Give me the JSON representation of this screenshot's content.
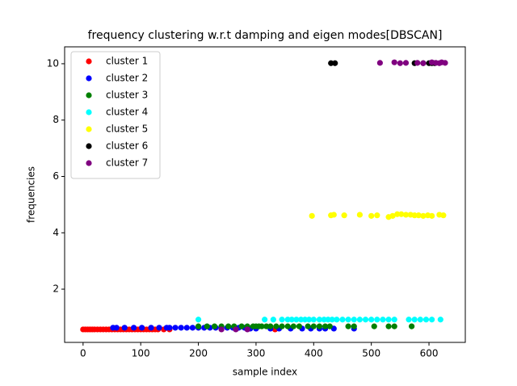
{
  "chart_data": {
    "type": "scatter",
    "title": "frequency clustering w.r.t damping and eigen modes[DBSCAN]",
    "xlabel": "sample index",
    "ylabel": "frequencies",
    "xlim": [
      -32,
      663
    ],
    "ylim": [
      0.11,
      10.6
    ],
    "xticks": [
      0,
      100,
      200,
      300,
      400,
      500,
      600
    ],
    "yticks": [
      2,
      4,
      6,
      8,
      10
    ],
    "legend": "upper left",
    "series": [
      {
        "name": "cluster 1",
        "color": "#ff0000",
        "x": [
          0,
          4,
          8,
          12,
          16,
          20,
          25,
          30,
          35,
          40,
          45,
          50,
          55,
          60,
          65,
          70,
          75,
          80,
          85,
          90,
          95,
          100,
          105,
          110,
          115,
          120,
          125,
          130,
          140,
          150,
          333
        ],
        "y": [
          0.57,
          0.57,
          0.57,
          0.57,
          0.57,
          0.57,
          0.57,
          0.57,
          0.57,
          0.57,
          0.57,
          0.57,
          0.57,
          0.57,
          0.57,
          0.57,
          0.57,
          0.57,
          0.57,
          0.57,
          0.57,
          0.57,
          0.57,
          0.57,
          0.57,
          0.57,
          0.57,
          0.57,
          0.57,
          0.57,
          0.57
        ]
      },
      {
        "name": "cluster 2",
        "color": "#0000ff",
        "x": [
          52,
          58,
          72,
          88,
          102,
          118,
          132,
          145,
          150,
          160,
          170,
          180,
          190,
          200,
          210,
          220,
          230,
          240,
          250,
          260,
          270,
          280,
          290,
          300,
          325,
          340,
          360,
          380,
          395,
          410,
          420,
          435,
          470
        ],
        "y": [
          0.63,
          0.63,
          0.63,
          0.63,
          0.63,
          0.63,
          0.63,
          0.63,
          0.63,
          0.63,
          0.63,
          0.63,
          0.63,
          0.63,
          0.63,
          0.63,
          0.63,
          0.63,
          0.63,
          0.63,
          0.63,
          0.63,
          0.6,
          0.6,
          0.6,
          0.6,
          0.6,
          0.6,
          0.6,
          0.6,
          0.6,
          0.6,
          0.6
        ]
      },
      {
        "name": "cluster 3",
        "color": "#008000",
        "x": [
          200,
          215,
          228,
          240,
          252,
          262,
          275,
          285,
          295,
          300,
          305,
          310,
          318,
          325,
          335,
          345,
          355,
          365,
          375,
          390,
          400,
          410,
          420,
          428,
          460,
          470,
          505,
          530,
          540,
          570
        ],
        "y": [
          0.68,
          0.68,
          0.68,
          0.68,
          0.68,
          0.68,
          0.68,
          0.68,
          0.68,
          0.68,
          0.68,
          0.68,
          0.68,
          0.68,
          0.68,
          0.68,
          0.68,
          0.68,
          0.68,
          0.68,
          0.68,
          0.68,
          0.68,
          0.68,
          0.68,
          0.68,
          0.68,
          0.68,
          0.68,
          0.68
        ]
      },
      {
        "name": "cluster 4",
        "color": "#00ffff",
        "x": [
          200,
          315,
          330,
          345,
          355,
          362,
          370,
          378,
          385,
          392,
          400,
          410,
          418,
          425,
          432,
          440,
          450,
          460,
          470,
          480,
          490,
          500,
          510,
          520,
          530,
          540,
          565,
          575,
          585,
          595,
          605,
          620
        ],
        "y": [
          0.92,
          0.92,
          0.92,
          0.92,
          0.92,
          0.92,
          0.92,
          0.92,
          0.92,
          0.92,
          0.92,
          0.92,
          0.92,
          0.92,
          0.92,
          0.92,
          0.92,
          0.92,
          0.92,
          0.92,
          0.92,
          0.92,
          0.92,
          0.92,
          0.92,
          0.92,
          0.92,
          0.92,
          0.92,
          0.92,
          0.92,
          0.92
        ]
      },
      {
        "name": "cluster 5",
        "color": "#ffff00",
        "x": [
          397,
          430,
          435,
          453,
          480,
          500,
          510,
          530,
          537,
          545,
          552,
          560,
          568,
          575,
          582,
          590,
          598,
          605,
          618,
          625
        ],
        "y": [
          4.6,
          4.62,
          4.64,
          4.62,
          4.64,
          4.6,
          4.62,
          4.56,
          4.6,
          4.66,
          4.66,
          4.64,
          4.64,
          4.62,
          4.62,
          4.6,
          4.62,
          4.6,
          4.64,
          4.62
        ]
      },
      {
        "name": "cluster 6",
        "color": "#000000",
        "x": [
          430,
          437,
          575,
          590,
          600,
          605,
          610
        ],
        "y": [
          10.02,
          10.02,
          10.02,
          10.02,
          10.02,
          10.02,
          10.02
        ]
      },
      {
        "name": "cluster 7",
        "color": "#800080",
        "x": [
          240,
          265,
          285,
          515,
          540,
          550,
          560,
          580,
          590,
          605,
          612,
          618,
          622,
          628
        ],
        "y": [
          0.57,
          0.57,
          0.57,
          10.03,
          10.05,
          10.02,
          10.03,
          10.03,
          10.02,
          10.05,
          10.03,
          10.02,
          10.05,
          10.03
        ]
      }
    ]
  }
}
